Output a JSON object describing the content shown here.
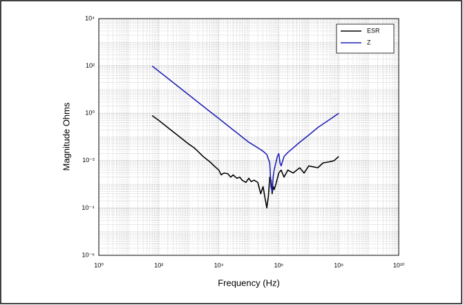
{
  "chart_data": {
    "type": "line",
    "xlabel": "Frequency (Hz)",
    "ylabel": "Magnitude Ohms",
    "xscale": "log",
    "yscale": "log",
    "grid": true,
    "legend": "upper right",
    "xlim": [
      1,
      10000000000
    ],
    "xticks": [
      {
        "value": 1,
        "label": "10⁰"
      },
      {
        "value": 100,
        "label": "10²"
      },
      {
        "value": 10000,
        "label": "10⁴"
      },
      {
        "value": 1000000,
        "label": "10⁶"
      },
      {
        "value": 100000000,
        "label": "10⁸"
      },
      {
        "value": 10000000000,
        "label": "10¹⁰"
      }
    ],
    "ylim": [
      1e-06,
      10000
    ],
    "yticks": [
      {
        "value": 1e-06,
        "label": "10⁻⁶"
      },
      {
        "value": 0.0001,
        "label": "10⁻⁴"
      },
      {
        "value": 0.01,
        "label": "10⁻²"
      },
      {
        "value": 1,
        "label": "10⁰"
      },
      {
        "value": 100,
        "label": "10²"
      },
      {
        "value": 10000,
        "label": "10⁴"
      }
    ],
    "series": [
      {
        "name": "ESR",
        "color": "#000000",
        "x": [
          60,
          100,
          200,
          500,
          1000,
          1500,
          2000,
          3000,
          5000,
          7000,
          10000,
          12000,
          15000,
          20000,
          25000,
          30000,
          40000,
          50000,
          60000,
          80000,
          100000,
          120000,
          150000,
          200000,
          250000,
          300000,
          350000,
          400000,
          450000,
          500000,
          550000,
          600000,
          650000,
          700000,
          800000,
          1000000,
          1200000,
          1500000,
          2000000,
          3000000,
          5000000,
          7000000,
          10000000,
          20000000,
          30000000,
          50000000,
          70000000,
          100000000
        ],
        "values": [
          0.8,
          0.5,
          0.25,
          0.1,
          0.05,
          0.035,
          0.025,
          0.015,
          0.009,
          0.006,
          0.004,
          0.0025,
          0.003,
          0.0028,
          0.002,
          0.0025,
          0.0018,
          0.002,
          0.0015,
          0.0012,
          0.0018,
          0.0013,
          0.0015,
          0.0012,
          0.0004,
          0.0008,
          0.00025,
          0.0001,
          0.0003,
          0.002,
          0.0015,
          0.0004,
          0.0008,
          0.0006,
          0.001,
          0.003,
          0.004,
          0.002,
          0.004,
          0.003,
          0.005,
          0.003,
          0.006,
          0.005,
          0.008,
          0.009,
          0.01,
          0.015
        ]
      },
      {
        "name": "Z",
        "color": "#1f1fb4",
        "x": [
          60,
          100,
          200,
          500,
          1000,
          2000,
          5000,
          10000,
          20000,
          50000,
          100000,
          200000,
          300000,
          400000,
          500000,
          550000,
          600000,
          650000,
          700000,
          800000,
          900000,
          1000000,
          1100000,
          1200000,
          1500000,
          2000000,
          5000000,
          10000000,
          20000000,
          50000000,
          100000000
        ],
        "values": [
          100,
          60,
          30,
          12,
          6,
          3,
          1.2,
          0.6,
          0.3,
          0.12,
          0.06,
          0.035,
          0.025,
          0.018,
          0.008,
          0.0008,
          0.0005,
          0.002,
          0.004,
          0.008,
          0.015,
          0.02,
          0.008,
          0.006,
          0.015,
          0.022,
          0.06,
          0.12,
          0.25,
          0.55,
          1
        ]
      }
    ]
  }
}
